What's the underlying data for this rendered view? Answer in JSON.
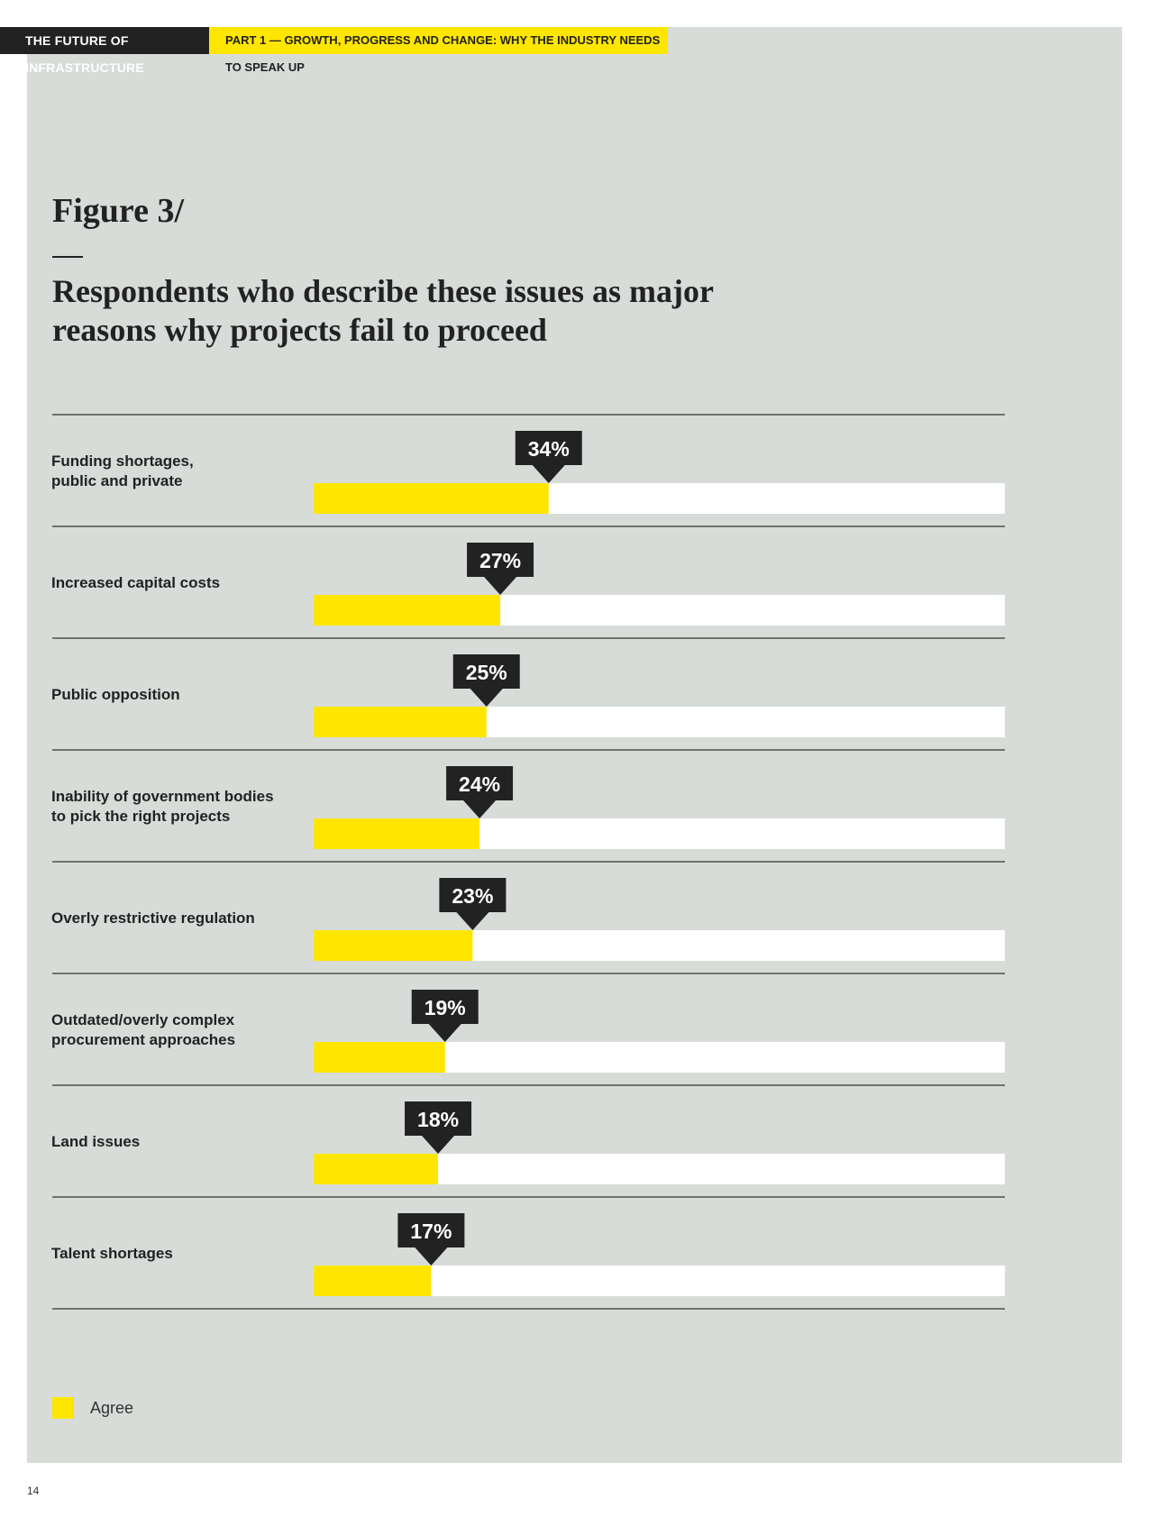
{
  "header": {
    "left": "THE FUTURE OF INFRASTRUCTURE",
    "right": "PART 1 — GROWTH, PROGRESS AND CHANGE: WHY THE INDUSTRY NEEDS TO SPEAK UP"
  },
  "figure": {
    "label": "Figure 3/",
    "title": "Respondents who describe these issues as major reasons why projects fail to proceed"
  },
  "colors": {
    "panel": "#d7dcd8",
    "bar": "#ffe600",
    "track": "#ffffff",
    "marker": "#222222",
    "rule": "#333333"
  },
  "chart_data": {
    "type": "bar",
    "orientation": "horizontal",
    "categories": [
      [
        "Funding shortages,",
        "public and private"
      ],
      [
        "Increased capital costs"
      ],
      [
        "Public opposition"
      ],
      [
        "Inability of government bodies",
        "to pick the right projects"
      ],
      [
        "Overly restrictive regulation"
      ],
      [
        "Outdated/overly complex",
        "procurement approaches"
      ],
      [
        "Land issues"
      ],
      [
        "Talent shortages"
      ]
    ],
    "series": [
      {
        "name": "Agree",
        "values": [
          34,
          27,
          25,
          24,
          23,
          19,
          18,
          17
        ]
      }
    ],
    "value_labels": [
      "34%",
      "27%",
      "25%",
      "24%",
      "23%",
      "19%",
      "18%",
      "17%"
    ],
    "xlim": [
      0,
      100
    ],
    "legend": "bottom-left"
  },
  "legend": {
    "label": "Agree"
  },
  "page_number": "14"
}
